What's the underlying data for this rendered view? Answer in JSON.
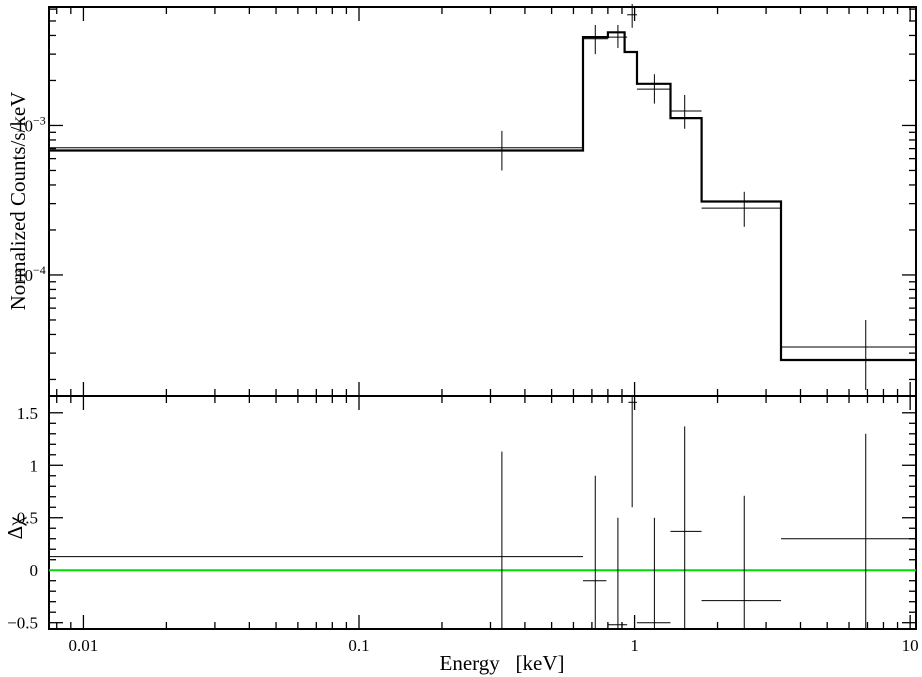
{
  "chart_data": [
    {
      "type": "line",
      "panel": "top",
      "ylabel": "Normalized Counts/s/keV",
      "x_scale": "log",
      "y_scale": "log",
      "xlim": [
        0.0075,
        10.5
      ],
      "ylim": [
        1.55e-05,
        0.0062
      ],
      "y_ticks": [
        {
          "value": 0.001,
          "label": "10",
          "exp": "−3"
        },
        {
          "value": 0.0001,
          "label": "10",
          "exp": "−4"
        }
      ],
      "series": [
        {
          "style": "step-thick",
          "bins": [
            {
              "x_lo": 0.0075,
              "x_hi": 0.65,
              "y": 0.00068
            },
            {
              "x_lo": 0.65,
              "x_hi": 0.8,
              "y": 0.0039
            },
            {
              "x_lo": 0.8,
              "x_hi": 0.92,
              "y": 0.0042
            },
            {
              "x_lo": 0.92,
              "x_hi": 1.02,
              "y": 0.0031
            },
            {
              "x_lo": 1.02,
              "x_hi": 1.35,
              "y": 0.0019
            },
            {
              "x_lo": 1.35,
              "x_hi": 1.75,
              "y": 0.00112
            },
            {
              "x_lo": 1.75,
              "x_hi": 3.4,
              "y": 0.00031
            },
            {
              "x_lo": 3.4,
              "x_hi": 10.5,
              "y": 2.7e-05
            }
          ]
        },
        {
          "style": "crosses-thin",
          "points": [
            {
              "x": 0.33,
              "x_lo": 0.0075,
              "x_hi": 0.65,
              "y": 0.00071,
              "y_lo": 0.0005,
              "y_hi": 0.00092
            },
            {
              "x": 0.72,
              "x_lo": 0.65,
              "x_hi": 0.8,
              "y": 0.0038,
              "y_lo": 0.003,
              "y_hi": 0.0047
            },
            {
              "x": 0.87,
              "x_lo": 0.8,
              "x_hi": 0.94,
              "y": 0.0039,
              "y_lo": 0.0033,
              "y_hi": 0.0047
            },
            {
              "x": 0.98,
              "x_lo": 0.94,
              "x_hi": 1.02,
              "y": 0.0055,
              "y_lo": 0.0045,
              "y_hi": 0.0065
            },
            {
              "x": 1.18,
              "x_lo": 1.02,
              "x_hi": 1.35,
              "y": 0.00175,
              "y_lo": 0.0014,
              "y_hi": 0.0022
            },
            {
              "x": 1.52,
              "x_lo": 1.35,
              "x_hi": 1.75,
              "y": 0.00125,
              "y_lo": 0.00095,
              "y_hi": 0.0016
            },
            {
              "x": 2.5,
              "x_lo": 1.75,
              "x_hi": 3.4,
              "y": 0.00028,
              "y_lo": 0.00021,
              "y_hi": 0.00036
            },
            {
              "x": 6.9,
              "x_lo": 3.4,
              "x_hi": 10.5,
              "y": 3.3e-05,
              "y_lo": 1.7e-05,
              "y_hi": 5e-05
            }
          ]
        }
      ]
    },
    {
      "type": "scatter",
      "panel": "bottom",
      "xlabel": "Energy   [keV]",
      "ylabel": "Δχ",
      "x_scale": "log",
      "xlim": [
        0.0075,
        10.5
      ],
      "ylim": [
        -0.56,
        1.66
      ],
      "y_ticks": [
        {
          "value": 1.5,
          "label": "1.5"
        },
        {
          "value": 1,
          "label": "1"
        },
        {
          "value": 0.5,
          "label": "0.5"
        },
        {
          "value": 0,
          "label": "0"
        },
        {
          "value": -0.5,
          "label": "−0.5"
        }
      ],
      "x_ticks": [
        {
          "value": 0.01,
          "label": "0.01"
        },
        {
          "value": 0.1,
          "label": "0.1"
        },
        {
          "value": 1,
          "label": "1"
        },
        {
          "value": 10,
          "label": "10"
        }
      ],
      "reference_line": {
        "y": 0,
        "color": "#00dd00"
      },
      "series": [
        {
          "style": "crosses-thin",
          "points": [
            {
              "x": 0.33,
              "x_lo": 0.0075,
              "x_hi": 0.65,
              "y": 0.13,
              "y_lo": -0.87,
              "y_hi": 1.13
            },
            {
              "x": 0.72,
              "x_lo": 0.65,
              "x_hi": 0.79,
              "y": -0.1,
              "y_lo": -1.1,
              "y_hi": 0.9
            },
            {
              "x": 0.87,
              "x_lo": 0.8,
              "x_hi": 0.94,
              "y": -0.52,
              "y_lo": -1.52,
              "y_hi": 0.5
            },
            {
              "x": 0.98,
              "x_lo": 0.95,
              "x_hi": 1.02,
              "y": 1.6,
              "y_lo": 0.6,
              "y_hi": 2.6
            },
            {
              "x": 1.18,
              "x_lo": 1.02,
              "x_hi": 1.35,
              "y": -0.5,
              "y_lo": -1.5,
              "y_hi": 0.5
            },
            {
              "x": 1.52,
              "x_lo": 1.35,
              "x_hi": 1.75,
              "y": 0.37,
              "y_lo": -0.63,
              "y_hi": 1.37
            },
            {
              "x": 2.5,
              "x_lo": 1.75,
              "x_hi": 3.4,
              "y": -0.29,
              "y_lo": -1.29,
              "y_hi": 0.71
            },
            {
              "x": 6.9,
              "x_lo": 3.4,
              "x_hi": 10.5,
              "y": 0.3,
              "y_lo": -0.7,
              "y_hi": 1.3
            }
          ]
        }
      ]
    }
  ]
}
